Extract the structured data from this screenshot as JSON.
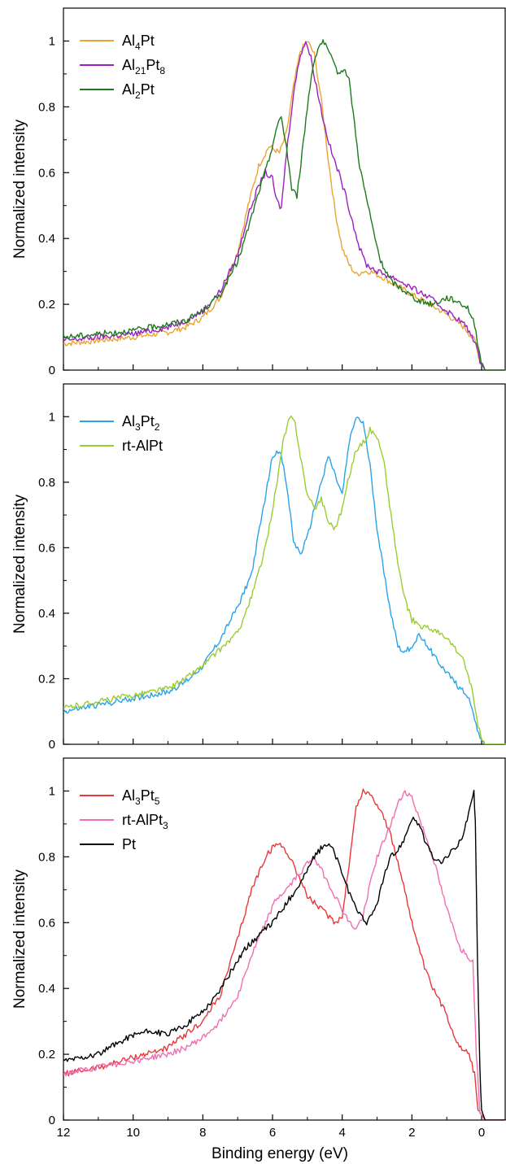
{
  "figure": {
    "xlabel": "Binding energy (eV)",
    "x_tick_labels": [
      "12",
      "10",
      "8",
      "6",
      "4",
      "2",
      "0"
    ]
  },
  "chart_data": [
    {
      "type": "line",
      "panel": "top",
      "ylabel": "Normalized intensity",
      "xlabel": "",
      "xlim": [
        12,
        -0.7
      ],
      "x_reversed": true,
      "ylim": [
        0,
        1.1
      ],
      "y_ticks": [
        0,
        0.2,
        0.4,
        0.6,
        0.8,
        1
      ],
      "y_tick_labels": [
        "0",
        "0.2",
        "0.4",
        "0.6",
        "0.8",
        "1"
      ],
      "grid": false,
      "legend_position": "top-left",
      "series": [
        {
          "name": "Al4Pt",
          "legend": {
            "base": "Al",
            "sub1": "4",
            "mid": "Pt",
            "sub2": ""
          },
          "color": "#E8A532",
          "x": [
            12,
            11,
            10,
            9,
            8.5,
            8,
            7.5,
            7,
            6.7,
            6.4,
            6.1,
            5.8,
            5.6,
            5.4,
            5.2,
            5.0,
            4.8,
            4.6,
            4.4,
            4.2,
            4.0,
            3.8,
            3.6,
            3.4,
            3.2,
            3.0,
            2.8,
            2.5,
            2.0,
            1.5,
            1.0,
            0.5,
            0.2,
            0.05,
            -0.1,
            -0.7
          ],
          "y": [
            0.08,
            0.09,
            0.1,
            0.115,
            0.13,
            0.16,
            0.22,
            0.36,
            0.5,
            0.62,
            0.68,
            0.66,
            0.72,
            0.86,
            0.97,
            1.0,
            0.96,
            0.82,
            0.64,
            0.48,
            0.37,
            0.32,
            0.29,
            0.3,
            0.3,
            0.29,
            0.28,
            0.26,
            0.23,
            0.2,
            0.17,
            0.13,
            0.09,
            0.03,
            0.0,
            0.0
          ]
        },
        {
          "name": "Al21Pt8",
          "legend": {
            "base": "Al",
            "sub1": "21",
            "mid": "Pt",
            "sub2": "8"
          },
          "color": "#9B1FC1",
          "x": [
            12,
            11,
            10,
            9,
            8.5,
            8,
            7.5,
            7,
            6.7,
            6.4,
            6.2,
            6.0,
            5.9,
            5.75,
            5.6,
            5.4,
            5.2,
            5.05,
            4.9,
            4.7,
            4.5,
            4.3,
            4.1,
            3.9,
            3.7,
            3.5,
            3.3,
            3.0,
            2.5,
            2.0,
            1.5,
            1.0,
            0.5,
            0.2,
            0.05,
            -0.1,
            -0.7
          ],
          "y": [
            0.09,
            0.1,
            0.11,
            0.13,
            0.15,
            0.18,
            0.24,
            0.35,
            0.47,
            0.56,
            0.6,
            0.58,
            0.52,
            0.49,
            0.66,
            0.84,
            0.96,
            1.0,
            0.95,
            0.84,
            0.74,
            0.66,
            0.6,
            0.53,
            0.45,
            0.37,
            0.32,
            0.3,
            0.28,
            0.25,
            0.22,
            0.18,
            0.14,
            0.09,
            0.03,
            0.0,
            0.0
          ]
        },
        {
          "name": "Al2Pt",
          "legend": {
            "base": "Al",
            "sub1": "2",
            "mid": "Pt",
            "sub2": ""
          },
          "color": "#1E7A1E",
          "x": [
            12,
            11,
            10,
            9,
            8.5,
            8,
            7.5,
            7,
            6.7,
            6.4,
            6.1,
            5.9,
            5.75,
            5.6,
            5.45,
            5.3,
            5.15,
            5.0,
            4.85,
            4.7,
            4.55,
            4.4,
            4.25,
            4.1,
            3.95,
            3.8,
            3.65,
            3.5,
            3.3,
            3.1,
            2.9,
            2.6,
            2.2,
            1.8,
            1.4,
            1.0,
            0.7,
            0.4,
            0.2,
            0.05,
            -0.1,
            -0.7
          ],
          "y": [
            0.1,
            0.11,
            0.12,
            0.14,
            0.15,
            0.18,
            0.23,
            0.33,
            0.43,
            0.54,
            0.64,
            0.73,
            0.77,
            0.68,
            0.55,
            0.53,
            0.66,
            0.8,
            0.92,
            0.98,
            1.0,
            0.97,
            0.93,
            0.9,
            0.92,
            0.88,
            0.75,
            0.62,
            0.52,
            0.42,
            0.33,
            0.27,
            0.24,
            0.21,
            0.2,
            0.22,
            0.21,
            0.19,
            0.14,
            0.04,
            0.0,
            0.0
          ]
        }
      ]
    },
    {
      "type": "line",
      "panel": "middle",
      "ylabel": "Normalized intensity",
      "xlabel": "",
      "xlim": [
        12,
        -0.7
      ],
      "x_reversed": true,
      "ylim": [
        0,
        1.1
      ],
      "y_ticks": [
        0,
        0.2,
        0.4,
        0.6,
        0.8,
        1
      ],
      "y_tick_labels": [
        "0",
        "0.2",
        "0.4",
        "0.6",
        "0.8",
        "1"
      ],
      "grid": false,
      "legend_position": "top-left",
      "series": [
        {
          "name": "Al3Pt2",
          "legend": {
            "base": "Al",
            "sub1": "3",
            "mid": "Pt",
            "sub2": "2"
          },
          "color": "#2AA3E8",
          "x": [
            12,
            11,
            10,
            9,
            8.5,
            8,
            7.5,
            7,
            6.6,
            6.3,
            6.0,
            5.8,
            5.6,
            5.4,
            5.2,
            5.0,
            4.8,
            4.6,
            4.4,
            4.2,
            4.0,
            3.8,
            3.6,
            3.4,
            3.2,
            3.0,
            2.8,
            2.6,
            2.4,
            2.2,
            2.0,
            1.8,
            1.6,
            1.3,
            1.0,
            0.7,
            0.4,
            0.2,
            0.05,
            -0.1,
            -0.7
          ],
          "y": [
            0.1,
            0.12,
            0.14,
            0.16,
            0.19,
            0.24,
            0.32,
            0.42,
            0.52,
            0.7,
            0.88,
            0.9,
            0.8,
            0.62,
            0.58,
            0.63,
            0.72,
            0.8,
            0.88,
            0.82,
            0.76,
            0.92,
            1.0,
            0.98,
            0.85,
            0.66,
            0.52,
            0.4,
            0.3,
            0.28,
            0.3,
            0.33,
            0.31,
            0.26,
            0.22,
            0.18,
            0.15,
            0.08,
            0.02,
            0.0,
            0.0
          ]
        },
        {
          "name": "rt-AlPt",
          "legend": {
            "base": "rt-AlPt",
            "sub1": "",
            "mid": "",
            "sub2": ""
          },
          "color": "#9ACD32",
          "x": [
            12,
            11,
            10,
            9,
            8.5,
            8,
            7.5,
            7,
            6.6,
            6.2,
            5.9,
            5.7,
            5.5,
            5.35,
            5.2,
            5.0,
            4.8,
            4.6,
            4.4,
            4.2,
            4.0,
            3.8,
            3.6,
            3.4,
            3.2,
            3.0,
            2.8,
            2.6,
            2.4,
            2.2,
            2.0,
            1.7,
            1.4,
            1.1,
            0.8,
            0.5,
            0.3,
            0.1,
            -0.1,
            -0.7
          ],
          "y": [
            0.11,
            0.13,
            0.15,
            0.17,
            0.2,
            0.24,
            0.29,
            0.34,
            0.45,
            0.6,
            0.78,
            0.92,
            1.0,
            0.98,
            0.88,
            0.76,
            0.72,
            0.75,
            0.68,
            0.66,
            0.72,
            0.82,
            0.9,
            0.92,
            0.96,
            0.94,
            0.86,
            0.7,
            0.55,
            0.44,
            0.38,
            0.36,
            0.35,
            0.33,
            0.3,
            0.25,
            0.18,
            0.05,
            0.0,
            0.0
          ]
        }
      ]
    },
    {
      "type": "line",
      "panel": "bottom",
      "ylabel": "Normalized intensity",
      "xlabel": "Binding energy (eV)",
      "xlim": [
        12,
        -0.7
      ],
      "x_reversed": true,
      "ylim": [
        0,
        1.1
      ],
      "y_ticks": [
        0,
        0.2,
        0.4,
        0.6,
        0.8,
        1
      ],
      "y_tick_labels": [
        "0",
        "0.2",
        "0.4",
        "0.6",
        "0.8",
        "1"
      ],
      "grid": false,
      "legend_position": "top-left",
      "series": [
        {
          "name": "Al3Pt5",
          "legend": {
            "base": "Al",
            "sub1": "3",
            "mid": "Pt",
            "sub2": "5"
          },
          "color": "#E8383A",
          "x": [
            12,
            11,
            10,
            9,
            8.5,
            8,
            7.5,
            7,
            6.6,
            6.2,
            5.9,
            5.7,
            5.5,
            5.2,
            5.0,
            4.8,
            4.6,
            4.4,
            4.2,
            4.0,
            3.8,
            3.6,
            3.4,
            3.2,
            3.0,
            2.8,
            2.6,
            2.4,
            2.2,
            2.0,
            1.8,
            1.6,
            1.4,
            1.2,
            1.0,
            0.8,
            0.6,
            0.4,
            0.2,
            0.1,
            -0.1,
            -0.7
          ],
          "y": [
            0.14,
            0.16,
            0.19,
            0.22,
            0.26,
            0.3,
            0.38,
            0.55,
            0.7,
            0.8,
            0.84,
            0.83,
            0.8,
            0.73,
            0.68,
            0.66,
            0.64,
            0.62,
            0.6,
            0.62,
            0.78,
            0.95,
            1.0,
            0.99,
            0.96,
            0.92,
            0.86,
            0.78,
            0.7,
            0.6,
            0.52,
            0.45,
            0.4,
            0.36,
            0.32,
            0.26,
            0.22,
            0.21,
            0.14,
            0.03,
            0.0,
            0.0
          ]
        },
        {
          "name": "rt-AlPt3",
          "legend": {
            "base": "rt-AlPt",
            "sub1": "3",
            "mid": "",
            "sub2": ""
          },
          "color": "#F06EB4",
          "x": [
            12,
            11,
            10,
            9,
            8.5,
            8,
            7.5,
            7,
            6.6,
            6.2,
            5.9,
            5.6,
            5.3,
            5.0,
            4.8,
            4.6,
            4.4,
            4.2,
            4.0,
            3.8,
            3.6,
            3.4,
            3.2,
            3.0,
            2.8,
            2.6,
            2.4,
            2.2,
            2.0,
            1.8,
            1.6,
            1.4,
            1.2,
            1.0,
            0.8,
            0.6,
            0.4,
            0.25,
            0.15,
            0.05,
            -0.1,
            -0.7
          ],
          "y": [
            0.14,
            0.16,
            0.18,
            0.2,
            0.22,
            0.25,
            0.3,
            0.38,
            0.5,
            0.6,
            0.67,
            0.7,
            0.74,
            0.78,
            0.8,
            0.76,
            0.72,
            0.68,
            0.64,
            0.6,
            0.58,
            0.62,
            0.72,
            0.8,
            0.85,
            0.9,
            0.96,
            1.0,
            0.98,
            0.92,
            0.86,
            0.8,
            0.72,
            0.64,
            0.58,
            0.52,
            0.5,
            0.48,
            0.2,
            0.03,
            0.0,
            0.0
          ]
        },
        {
          "name": "Pt",
          "legend": {
            "base": "Pt",
            "sub1": "",
            "mid": "",
            "sub2": ""
          },
          "color": "#000000",
          "x": [
            12,
            11,
            10.5,
            10,
            9.5,
            9,
            8.5,
            8,
            7.6,
            7.2,
            6.8,
            6.4,
            6.0,
            5.6,
            5.2,
            4.8,
            4.5,
            4.3,
            4.1,
            3.9,
            3.7,
            3.5,
            3.3,
            3.15,
            3.0,
            2.8,
            2.6,
            2.4,
            2.2,
            2.0,
            1.8,
            1.6,
            1.4,
            1.2,
            1.0,
            0.8,
            0.6,
            0.45,
            0.3,
            0.22,
            0.18,
            0.12,
            0.05,
            0.0,
            -0.1,
            -0.7
          ],
          "y": [
            0.18,
            0.2,
            0.23,
            0.26,
            0.27,
            0.26,
            0.29,
            0.33,
            0.38,
            0.45,
            0.52,
            0.56,
            0.6,
            0.66,
            0.72,
            0.8,
            0.84,
            0.83,
            0.78,
            0.72,
            0.66,
            0.63,
            0.6,
            0.62,
            0.66,
            0.74,
            0.8,
            0.82,
            0.86,
            0.92,
            0.9,
            0.84,
            0.8,
            0.78,
            0.8,
            0.82,
            0.85,
            0.9,
            0.96,
            1.0,
            0.9,
            0.5,
            0.15,
            0.03,
            0.0,
            0.0
          ]
        }
      ]
    }
  ]
}
